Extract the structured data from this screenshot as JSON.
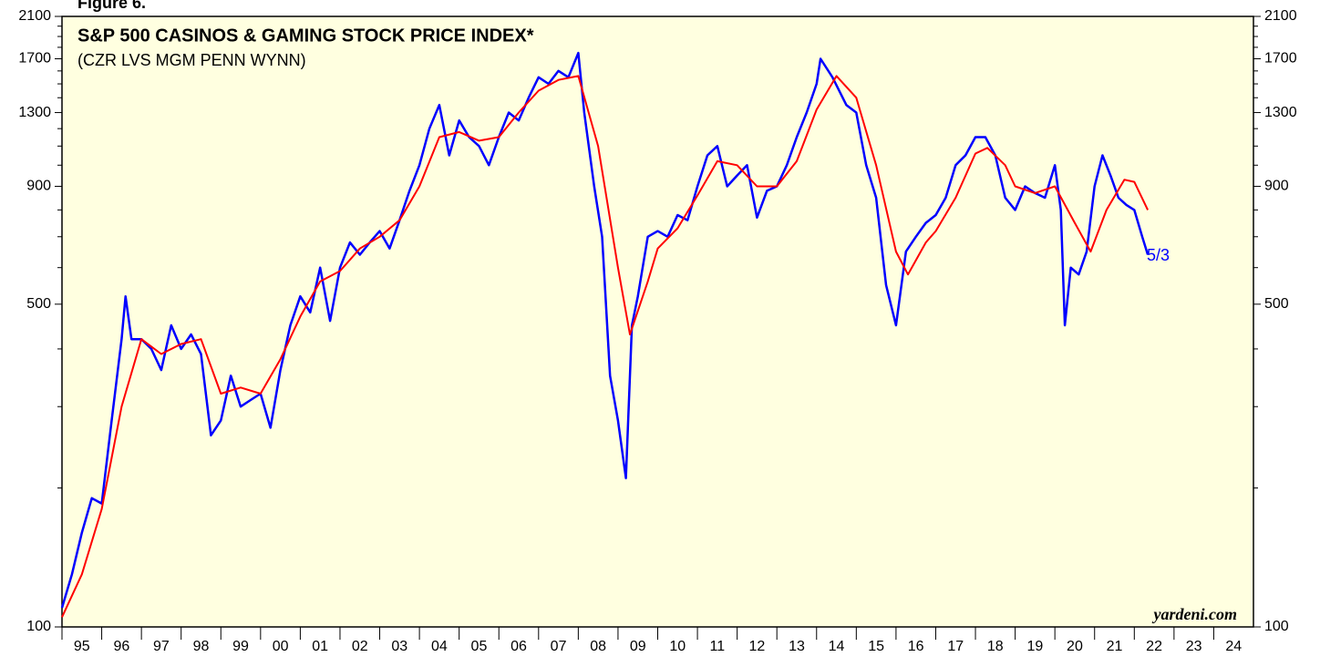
{
  "chart_data": {
    "type": "line",
    "figure_label": "Figure 6.",
    "title": "S&P 500 CASINOS & GAMING STOCK PRICE INDEX*",
    "subtitle": "(CZR LVS MGM PENN WYNN)",
    "annotation": "5/3",
    "source": "yardeni.com",
    "log_scale": true,
    "ylim": [
      100,
      2100
    ],
    "yticks": [
      100,
      500,
      900,
      1300,
      1700,
      2100
    ],
    "y_minor_ticks": [
      200,
      300,
      400,
      600,
      700,
      800,
      1000,
      1100,
      1200,
      1400,
      1500,
      1600,
      1800,
      1900,
      2000
    ],
    "xlim": [
      1995,
      2025
    ],
    "xticks": [
      {
        "value": 1995,
        "label": "95"
      },
      {
        "value": 1996,
        "label": "96"
      },
      {
        "value": 1997,
        "label": "97"
      },
      {
        "value": 1998,
        "label": "98"
      },
      {
        "value": 1999,
        "label": "99"
      },
      {
        "value": 2000,
        "label": "00"
      },
      {
        "value": 2001,
        "label": "01"
      },
      {
        "value": 2002,
        "label": "02"
      },
      {
        "value": 2003,
        "label": "03"
      },
      {
        "value": 2004,
        "label": "04"
      },
      {
        "value": 2005,
        "label": "05"
      },
      {
        "value": 2006,
        "label": "06"
      },
      {
        "value": 2007,
        "label": "07"
      },
      {
        "value": 2008,
        "label": "08"
      },
      {
        "value": 2009,
        "label": "09"
      },
      {
        "value": 2010,
        "label": "10"
      },
      {
        "value": 2011,
        "label": "11"
      },
      {
        "value": 2012,
        "label": "12"
      },
      {
        "value": 2013,
        "label": "13"
      },
      {
        "value": 2014,
        "label": "14"
      },
      {
        "value": 2015,
        "label": "15"
      },
      {
        "value": 2016,
        "label": "16"
      },
      {
        "value": 2017,
        "label": "17"
      },
      {
        "value": 2018,
        "label": "18"
      },
      {
        "value": 2019,
        "label": "19"
      },
      {
        "value": 2020,
        "label": "20"
      },
      {
        "value": 2021,
        "label": "21"
      },
      {
        "value": 2022,
        "label": "22"
      },
      {
        "value": 2023,
        "label": "23"
      },
      {
        "value": 2024,
        "label": "24"
      }
    ],
    "background": "#ffffe0",
    "series": [
      {
        "color": "#0000ff",
        "x": [
          1995.0,
          1995.25,
          1995.5,
          1995.75,
          1996.0,
          1996.25,
          1996.5,
          1996.6,
          1996.75,
          1997.0,
          1997.25,
          1997.5,
          1997.75,
          1998.0,
          1998.25,
          1998.5,
          1998.75,
          1999.0,
          1999.25,
          1999.5,
          1999.75,
          2000.0,
          2000.25,
          2000.5,
          2000.75,
          2001.0,
          2001.25,
          2001.5,
          2001.75,
          2002.0,
          2002.25,
          2002.5,
          2002.75,
          2003.0,
          2003.25,
          2003.5,
          2003.75,
          2004.0,
          2004.25,
          2004.5,
          2004.75,
          2005.0,
          2005.25,
          2005.5,
          2005.75,
          2006.0,
          2006.25,
          2006.5,
          2006.75,
          2007.0,
          2007.25,
          2007.5,
          2007.75,
          2008.0,
          2008.15,
          2008.4,
          2008.6,
          2008.8,
          2009.0,
          2009.2,
          2009.35,
          2009.5,
          2009.75,
          2010.0,
          2010.25,
          2010.5,
          2010.75,
          2011.0,
          2011.25,
          2011.5,
          2011.75,
          2012.0,
          2012.25,
          2012.5,
          2012.75,
          2013.0,
          2013.25,
          2013.5,
          2013.75,
          2014.0,
          2014.1,
          2014.4,
          2014.75,
          2015.0,
          2015.25,
          2015.5,
          2015.75,
          2016.0,
          2016.25,
          2016.5,
          2016.75,
          2017.0,
          2017.25,
          2017.5,
          2017.75,
          2018.0,
          2018.25,
          2018.5,
          2018.75,
          2019.0,
          2019.25,
          2019.5,
          2019.75,
          2020.0,
          2020.15,
          2020.25,
          2020.4,
          2020.6,
          2020.8,
          2021.0,
          2021.2,
          2021.4,
          2021.6,
          2021.8,
          2022.0,
          2022.2,
          2022.34
        ],
        "values": [
          110,
          130,
          160,
          190,
          185,
          280,
          420,
          520,
          420,
          420,
          400,
          360,
          450,
          400,
          430,
          390,
          260,
          280,
          350,
          300,
          310,
          320,
          270,
          360,
          450,
          520,
          480,
          600,
          460,
          600,
          680,
          640,
          680,
          720,
          660,
          760,
          880,
          1000,
          1200,
          1350,
          1050,
          1250,
          1150,
          1100,
          1000,
          1150,
          1300,
          1250,
          1400,
          1550,
          1500,
          1600,
          1550,
          1750,
          1300,
          900,
          700,
          350,
          280,
          210,
          450,
          520,
          700,
          720,
          700,
          780,
          760,
          900,
          1050,
          1100,
          900,
          950,
          1000,
          770,
          880,
          900,
          1000,
          1150,
          1300,
          1500,
          1700,
          1550,
          1350,
          1300,
          1000,
          850,
          550,
          450,
          650,
          700,
          750,
          780,
          850,
          1000,
          1050,
          1150,
          1150,
          1050,
          850,
          800,
          900,
          870,
          850,
          1000,
          800,
          450,
          600,
          580,
          650,
          900,
          1050,
          950,
          850,
          820,
          800,
          700,
          640
        ]
      },
      {
        "color": "#ff0000",
        "x": [
          1995.0,
          1995.5,
          1996.0,
          1996.5,
          1997.0,
          1997.5,
          1998.0,
          1998.5,
          1999.0,
          1999.5,
          2000.0,
          2000.5,
          2001.0,
          2001.5,
          2002.0,
          2002.5,
          2003.0,
          2003.5,
          2004.0,
          2004.5,
          2005.0,
          2005.5,
          2006.0,
          2006.5,
          2007.0,
          2007.5,
          2008.0,
          2008.5,
          2009.0,
          2009.3,
          2009.75,
          2010.0,
          2010.5,
          2011.0,
          2011.5,
          2012.0,
          2012.5,
          2013.0,
          2013.5,
          2014.0,
          2014.5,
          2015.0,
          2015.5,
          2016.0,
          2016.3,
          2016.75,
          2017.0,
          2017.5,
          2018.0,
          2018.3,
          2018.75,
          2019.0,
          2019.5,
          2020.0,
          2020.5,
          2020.9,
          2021.3,
          2021.75,
          2022.0,
          2022.34
        ],
        "values": [
          105,
          130,
          180,
          300,
          420,
          390,
          410,
          420,
          320,
          330,
          320,
          380,
          470,
          560,
          590,
          660,
          700,
          760,
          900,
          1150,
          1180,
          1130,
          1150,
          1300,
          1450,
          1530,
          1560,
          1100,
          600,
          430,
          560,
          660,
          730,
          860,
          1020,
          1000,
          900,
          900,
          1020,
          1320,
          1560,
          1400,
          1000,
          650,
          580,
          680,
          720,
          850,
          1060,
          1090,
          1000,
          900,
          870,
          900,
          750,
          650,
          800,
          930,
          920,
          800
        ]
      }
    ]
  }
}
